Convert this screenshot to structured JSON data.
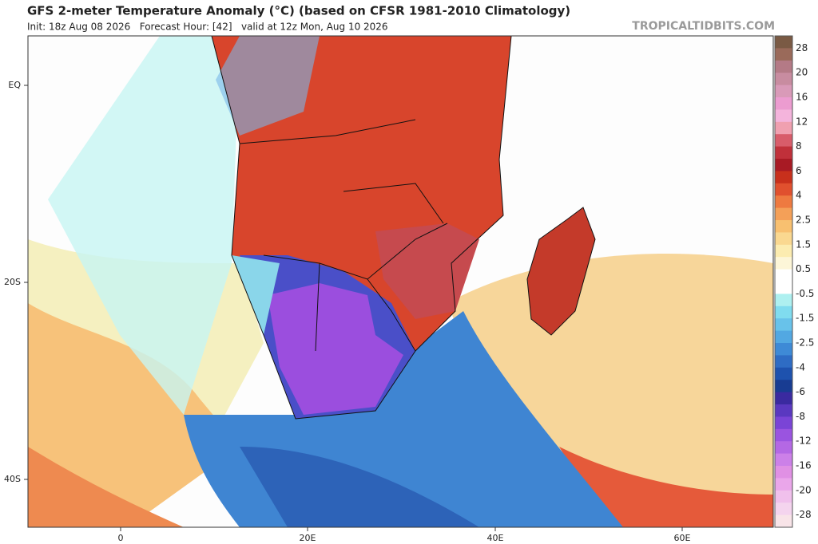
{
  "header": {
    "title": "GFS 2-meter Temperature Anomaly (°C) (based on CFSR 1981-2010 Climatology)",
    "subtitle": "Init: 18z Aug 08 2026   Forecast Hour: [42]   valid at 12z Mon, Aug 10 2026",
    "site": "TROPICALTIDBITS.COM"
  },
  "map": {
    "lat_labels": [
      "EQ",
      "20S",
      "40S"
    ],
    "lon_labels": [
      "0",
      "20E",
      "40E",
      "60E"
    ]
  },
  "colorbar": {
    "labels": [
      "28",
      "20",
      "16",
      "12",
      "8",
      "6",
      "4",
      "2.5",
      "1.5",
      "0.5",
      "-0.5",
      "-1.5",
      "-2.5",
      "-4",
      "-6",
      "-8",
      "-12",
      "-16",
      "-20",
      "-28"
    ]
  }
}
